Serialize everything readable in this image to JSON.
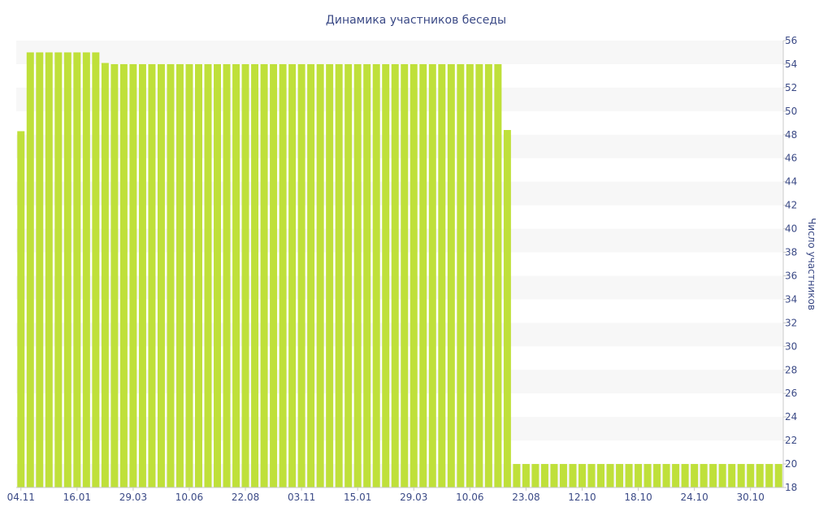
{
  "chart_data": {
    "type": "bar",
    "title": "Динамика участников беседы",
    "xlabel": "",
    "ylabel": "Число участников",
    "ylim": [
      18,
      56
    ],
    "y_ticks": [
      18,
      20,
      22,
      24,
      26,
      28,
      30,
      32,
      34,
      36,
      38,
      40,
      42,
      44,
      46,
      48,
      50,
      52,
      54,
      56
    ],
    "y_axis_side": "right",
    "grid": "alternating horizontal bands",
    "legend": "none",
    "bar_color": "#bfe03a",
    "band_color": "#f7f7f7",
    "text_color": "#3b4a86",
    "x_tick_labels": [
      {
        "index": 0,
        "label": "04.11"
      },
      {
        "index": 6,
        "label": "16.01"
      },
      {
        "index": 12,
        "label": "29.03"
      },
      {
        "index": 18,
        "label": "10.06"
      },
      {
        "index": 24,
        "label": "22.08"
      },
      {
        "index": 30,
        "label": "03.11"
      },
      {
        "index": 36,
        "label": "15.01"
      },
      {
        "index": 42,
        "label": "29.03"
      },
      {
        "index": 48,
        "label": "10.06"
      },
      {
        "index": 54,
        "label": "23.08"
      },
      {
        "index": 60,
        "label": "12.10"
      },
      {
        "index": 66,
        "label": "18.10"
      },
      {
        "index": 72,
        "label": "24.10"
      },
      {
        "index": 78,
        "label": "30.10"
      }
    ],
    "values": [
      48.3,
      55,
      55,
      55,
      55,
      55,
      55,
      55,
      55,
      54.1,
      54,
      54,
      54,
      54,
      54,
      54,
      54,
      54,
      54,
      54,
      54,
      54,
      54,
      54,
      54,
      54,
      54,
      54,
      54,
      54,
      54,
      54,
      54,
      54,
      54,
      54,
      54,
      54,
      54,
      54,
      54,
      54,
      54,
      54,
      54,
      54,
      54,
      54,
      54,
      54,
      54,
      54,
      48.4,
      20,
      20,
      20,
      20,
      20,
      20,
      20,
      20,
      20,
      20,
      20,
      20,
      20,
      20,
      20,
      20,
      20,
      20,
      20,
      20,
      20,
      20,
      20,
      20,
      20,
      20,
      20,
      20,
      20
    ]
  }
}
